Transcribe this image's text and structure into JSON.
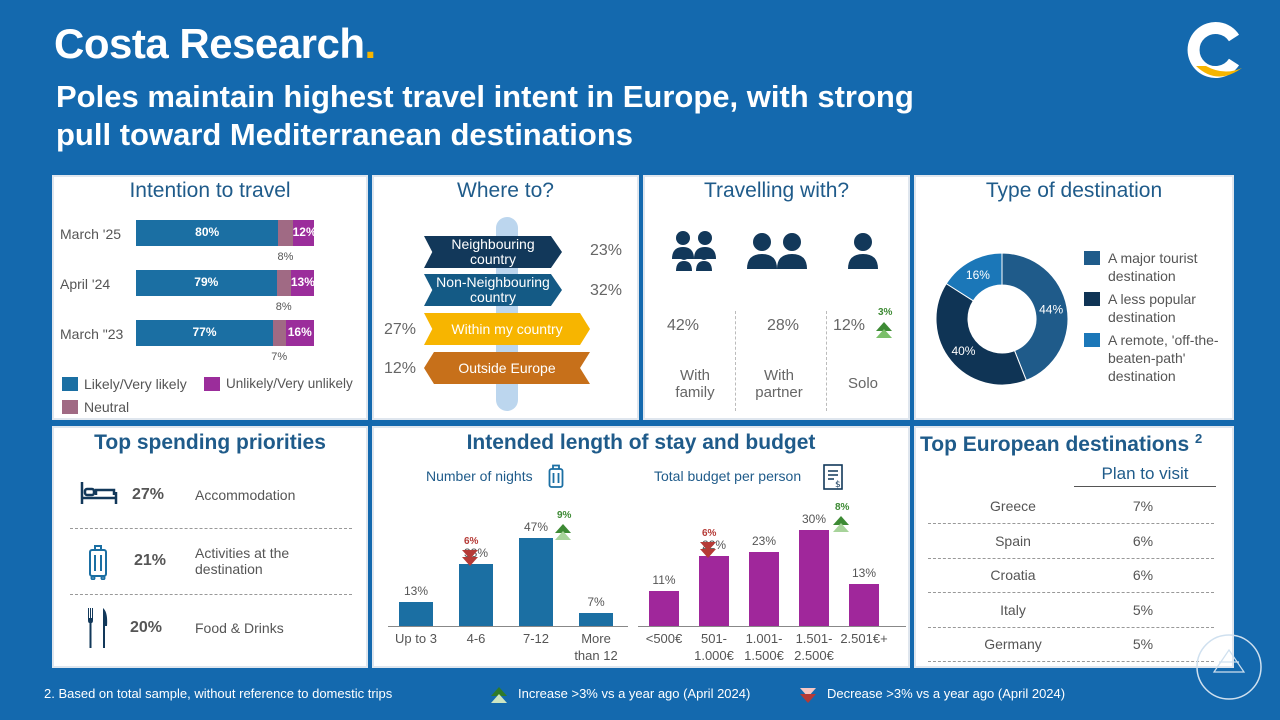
{
  "brand": {
    "name": "Costa Research",
    "dot": "."
  },
  "headline": {
    "line1": "Poles maintain highest  travel intent in Europe, with strong",
    "line2": "pull toward Mediterranean destinations"
  },
  "colors": {
    "background": "#1469ae",
    "likely": "#1b6fa3",
    "unlikely": "#9b2d9b",
    "neutral": "#a06a84",
    "increase": "#3d8a34",
    "decrease": "#b53a36",
    "budget": "#a0279b"
  },
  "intention": {
    "title": "Intention to travel",
    "rows": [
      {
        "label": "March '25",
        "likely": 80,
        "likely_label": "80%",
        "neutral": 8,
        "neutral_label": "8%",
        "unlikely": 12,
        "unlikely_label": "12%"
      },
      {
        "label": "April '24",
        "likely": 79,
        "likely_label": "79%",
        "neutral": 8,
        "neutral_label": "8%",
        "unlikely": 13,
        "unlikely_label": "13%"
      },
      {
        "label": "March \"23",
        "likely": 77,
        "likely_label": "77%",
        "neutral": 7,
        "neutral_label": "7%",
        "unlikely": 16,
        "unlikely_label": "16%"
      }
    ],
    "legend": {
      "likely": "Likely/Very likely",
      "unlikely": "Unlikely/Very unlikely",
      "neutral": "Neutral"
    }
  },
  "where": {
    "title": "Where to?",
    "signs": [
      {
        "line1": "Neighbouring",
        "line2": "country",
        "pct": "23%"
      },
      {
        "line1": "Non-Neighbouring",
        "line2": "country",
        "pct": "32%"
      },
      {
        "line1": "Within my country",
        "pct": "27%"
      },
      {
        "line1": "Outside Europe",
        "pct": "12%"
      }
    ]
  },
  "travelling": {
    "title": "Travelling with?",
    "groups": [
      {
        "pct": "42%",
        "line1": "With",
        "line2": "family"
      },
      {
        "pct": "28%",
        "line1": "With",
        "line2": "partner"
      },
      {
        "pct": "12%",
        "line1": "Solo",
        "change": "3%"
      }
    ]
  },
  "destination_type": {
    "title": "Type of destination",
    "slices": [
      {
        "label1": "A major tourist",
        "label2": "destination",
        "value": 44,
        "pct": "44%",
        "color": "#1f5b8a"
      },
      {
        "label1": "A less popular",
        "label2": "destination",
        "value": 40,
        "pct": "40%",
        "color": "#0f3455"
      },
      {
        "label1": "A remote, 'off-the-",
        "label2": "beaten-path'",
        "label3": "destination",
        "value": 16,
        "pct": "16%",
        "color": "#1b77b8"
      }
    ]
  },
  "spending": {
    "title": "Top spending priorities",
    "items": [
      {
        "pct": "27%",
        "label1": "Accommodation",
        "label2": ""
      },
      {
        "pct": "21%",
        "label1": "Activities at the",
        "label2": "destination"
      },
      {
        "pct": "20%",
        "label1": "Food & Drinks",
        "label2": ""
      }
    ]
  },
  "stay": {
    "title": "Intended length of stay and budget",
    "nights_label": "Number of nights",
    "budget_label": "Total budget per person"
  },
  "chart_data": [
    {
      "type": "bar",
      "title": "Number of nights",
      "categories": [
        "Up to 3",
        "4-6",
        "7-12",
        "More than 12"
      ],
      "category_lines": [
        [
          "Up to 3"
        ],
        [
          "4-6"
        ],
        [
          "7-12"
        ],
        [
          "More",
          "than 12"
        ]
      ],
      "values": [
        13,
        33,
        47,
        7
      ],
      "value_labels": [
        "13%",
        "33%",
        "47%",
        "7%"
      ],
      "changes": [
        null,
        {
          "dir": "down",
          "label": "6%"
        },
        {
          "dir": "up",
          "label": "9%"
        },
        null
      ],
      "ylim": [
        0,
        50
      ]
    },
    {
      "type": "bar",
      "title": "Total budget per person",
      "categories": [
        "<500€",
        "501-1.000€",
        "1.001-1.500€",
        "1.501-2.500€",
        "2.501€+"
      ],
      "category_lines": [
        [
          "<500€"
        ],
        [
          "501-",
          "1.000€"
        ],
        [
          "1.001-",
          "1.500€"
        ],
        [
          "1.501-",
          "2.500€"
        ],
        [
          "2.501€+"
        ]
      ],
      "values": [
        11,
        22,
        23,
        30,
        13
      ],
      "value_labels": [
        "11%",
        "22%",
        "23%",
        "30%",
        "13%"
      ],
      "changes": [
        null,
        {
          "dir": "down",
          "label": "6%"
        },
        null,
        {
          "dir": "up",
          "label": "8%"
        },
        null
      ],
      "ylim": [
        0,
        32
      ]
    }
  ],
  "destinations": {
    "title": "Top European destinations",
    "sup": "2",
    "column": "Plan to visit",
    "rows": [
      {
        "name": "Greece",
        "value": "7%"
      },
      {
        "name": "Spain",
        "value": "6%"
      },
      {
        "name": "Croatia",
        "value": "6%"
      },
      {
        "name": "Italy",
        "value": "5%"
      },
      {
        "name": "Germany",
        "value": "5%"
      }
    ]
  },
  "footer": {
    "note": "2. Based on total sample, without reference to domestic trips",
    "increase": "Increase >3% vs a year ago (April 2024)",
    "decrease": "Decrease >3% vs a year ago (April 2024)"
  }
}
